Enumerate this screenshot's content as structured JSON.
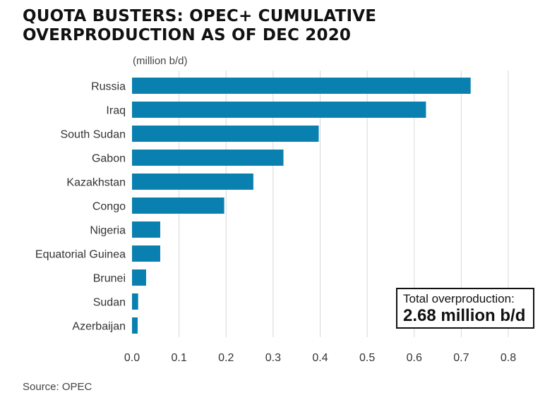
{
  "title": "QUOTA BUSTERS: OPEC+ CUMULATIVE OVERPRODUCTION AS OF DEC 2020",
  "unit_label": "(million b/d)",
  "total_box": {
    "label": "Total overproduction:",
    "value": "2.68 million b/d"
  },
  "source": "Source: OPEC",
  "colors": {
    "bar": "#0a80b0",
    "grid": "#d8d8d8"
  },
  "chart_data": {
    "type": "bar",
    "orientation": "horizontal",
    "categories": [
      "Russia",
      "Iraq",
      "South Sudan",
      "Gabon",
      "Kazakhstan",
      "Congo",
      "Nigeria",
      "Equatorial Guinea",
      "Brunei",
      "Sudan",
      "Azerbaijan"
    ],
    "values": [
      0.72,
      0.625,
      0.397,
      0.322,
      0.258,
      0.196,
      0.06,
      0.06,
      0.03,
      0.013,
      0.012
    ],
    "xlim": [
      0,
      0.8
    ],
    "xticks": [
      "0.0",
      "0.1",
      "0.2",
      "0.3",
      "0.4",
      "0.5",
      "0.6",
      "0.7",
      "0.8"
    ],
    "grid": true
  }
}
